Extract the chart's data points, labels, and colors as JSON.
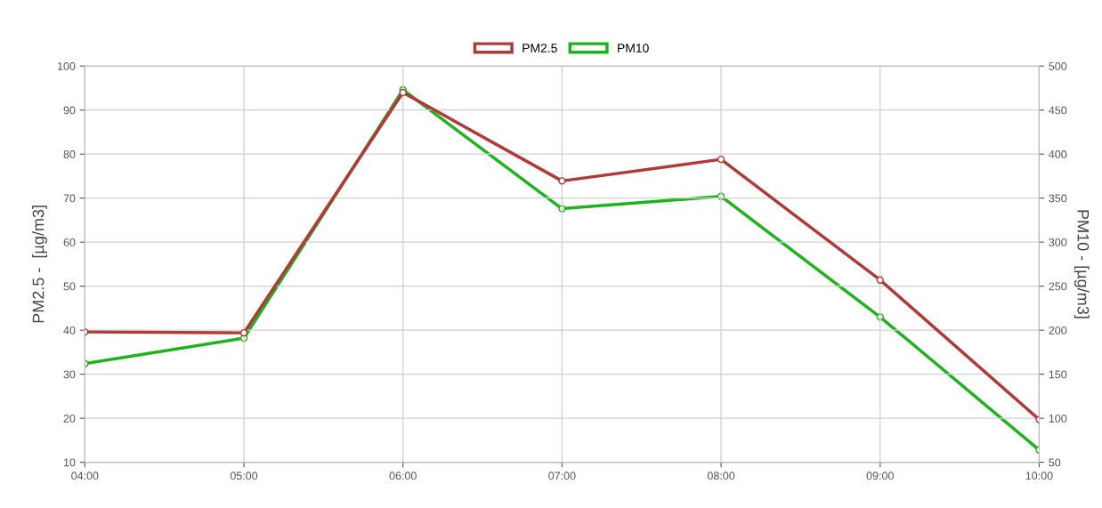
{
  "chart_data": {
    "type": "line",
    "categories": [
      "04:00",
      "05:00",
      "06:00",
      "07:00",
      "08:00",
      "09:00",
      "10:00"
    ],
    "ylabel": "PM2.5 -  [µg/m3]",
    "y2label": "PM10 - [µg/m3]",
    "ylim": [
      10,
      100
    ],
    "yticks": [
      10,
      20,
      30,
      40,
      50,
      60,
      70,
      80,
      90,
      100
    ],
    "y2lim": [
      50,
      500
    ],
    "y2ticks": [
      50,
      100,
      150,
      200,
      250,
      300,
      350,
      400,
      450,
      500
    ],
    "series": [
      {
        "name": "PM2.5",
        "color": "#b03a3a",
        "values": [
          39.6,
          39.4,
          94.0,
          73.9,
          78.8,
          51.4,
          19.7
        ]
      },
      {
        "name": "PM10",
        "color": "#1db31d",
        "axis": "y2",
        "values": [
          162,
          191,
          473,
          338,
          352,
          215,
          64
        ]
      }
    ],
    "grid": true,
    "legend": "top",
    "marker": "circle",
    "line_style": "solid"
  }
}
